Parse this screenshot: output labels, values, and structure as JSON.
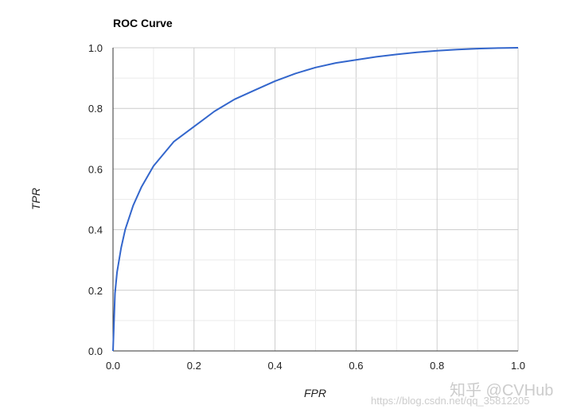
{
  "chart_data": {
    "type": "line",
    "title": "ROC Curve",
    "xlabel": "FPR",
    "ylabel": "TPR",
    "xlim": [
      0.0,
      1.0
    ],
    "ylim": [
      0.0,
      1.0
    ],
    "x_ticks": [
      "0.0",
      "0.2",
      "0.4",
      "0.6",
      "0.8",
      "1.0"
    ],
    "y_ticks": [
      "0.0",
      "0.2",
      "0.4",
      "0.6",
      "0.8",
      "1.0"
    ],
    "grid": true,
    "legend": "none",
    "series": [
      {
        "color": "#3366cc",
        "x": [
          0.0,
          0.005,
          0.01,
          0.02,
          0.03,
          0.05,
          0.07,
          0.1,
          0.15,
          0.2,
          0.25,
          0.3,
          0.35,
          0.4,
          0.45,
          0.5,
          0.55,
          0.6,
          0.65,
          0.7,
          0.75,
          0.8,
          0.85,
          0.9,
          0.95,
          1.0
        ],
        "y": [
          0.0,
          0.19,
          0.26,
          0.34,
          0.4,
          0.48,
          0.54,
          0.61,
          0.69,
          0.74,
          0.79,
          0.83,
          0.86,
          0.89,
          0.915,
          0.935,
          0.95,
          0.96,
          0.97,
          0.978,
          0.985,
          0.99,
          0.994,
          0.997,
          0.999,
          1.0
        ]
      }
    ]
  },
  "watermark": {
    "brand": "知乎 @CVHub",
    "url": "https://blog.csdn.net/qq_35812205"
  }
}
